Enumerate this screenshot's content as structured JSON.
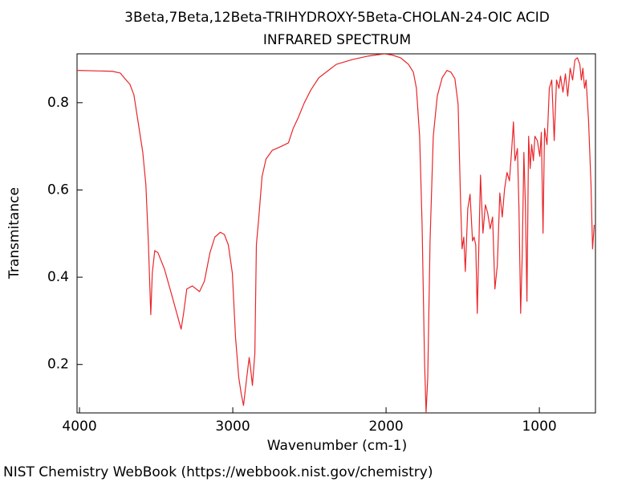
{
  "chart_data": {
    "type": "line",
    "title": "3Beta,7Beta,12Beta-TRIHYDROXY-5Beta-CHOLAN-24-OIC ACID",
    "subtitle": "INFRARED SPECTRUM",
    "x_label": "Wavenumber (cm-1)",
    "y_label": "Transmitance",
    "footer": "NIST Chemistry WebBook (https://webbook.nist.gov/chemistry)",
    "xlim": [
      4016,
      634
    ],
    "ylim": [
      0.089,
      0.912
    ],
    "xticks": [
      4000,
      3000,
      2000,
      1000
    ],
    "yticks": [
      0.2,
      0.4,
      0.6,
      0.8
    ],
    "grid": false,
    "x": [
      4016,
      3786,
      3734,
      3708,
      3671,
      3645,
      3619,
      3587,
      3567,
      3551,
      3535,
      3525,
      3509,
      3488,
      3446,
      3394,
      3358,
      3337,
      3321,
      3300,
      3264,
      3217,
      3185,
      3149,
      3117,
      3081,
      3055,
      3029,
      3003,
      2982,
      2961,
      2945,
      2930,
      2909,
      2893,
      2883,
      2872,
      2856,
      2846,
      2830,
      2809,
      2783,
      2742,
      2689,
      2637,
      2606,
      2574,
      2533,
      2491,
      2439,
      2376,
      2324,
      2219,
      2115,
      2010,
      1958,
      1906,
      1854,
      1822,
      1802,
      1781,
      1765,
      1749,
      1739,
      1728,
      1713,
      1692,
      1666,
      1634,
      1603,
      1577,
      1551,
      1530,
      1514,
      1504,
      1493,
      1483,
      1467,
      1452,
      1436,
      1426,
      1415,
      1405,
      1394,
      1384,
      1368,
      1352,
      1337,
      1321,
      1305,
      1290,
      1274,
      1258,
      1242,
      1227,
      1211,
      1195,
      1180,
      1169,
      1159,
      1143,
      1133,
      1122,
      1112,
      1101,
      1091,
      1081,
      1070,
      1060,
      1050,
      1039,
      1029,
      1013,
      997,
      987,
      976,
      966,
      950,
      935,
      919,
      903,
      888,
      872,
      862,
      846,
      830,
      815,
      799,
      783,
      768,
      752,
      736,
      726,
      716,
      705,
      695,
      679,
      663,
      653,
      642
    ],
    "series": [
      {
        "name": "Transmitance",
        "color": "#e8262a",
        "values": [
          0.874,
          0.872,
          0.868,
          0.857,
          0.842,
          0.818,
          0.759,
          0.686,
          0.612,
          0.483,
          0.314,
          0.41,
          0.461,
          0.456,
          0.419,
          0.354,
          0.308,
          0.281,
          0.317,
          0.373,
          0.38,
          0.367,
          0.391,
          0.456,
          0.492,
          0.503,
          0.498,
          0.474,
          0.41,
          0.262,
          0.17,
          0.133,
          0.106,
          0.17,
          0.216,
          0.189,
          0.152,
          0.225,
          0.474,
          0.538,
          0.631,
          0.671,
          0.691,
          0.699,
          0.708,
          0.741,
          0.765,
          0.8,
          0.829,
          0.857,
          0.874,
          0.888,
          0.899,
          0.907,
          0.912,
          0.909,
          0.903,
          0.888,
          0.87,
          0.833,
          0.723,
          0.52,
          0.207,
          0.09,
          0.17,
          0.483,
          0.723,
          0.815,
          0.857,
          0.874,
          0.87,
          0.855,
          0.796,
          0.575,
          0.465,
          0.492,
          0.413,
          0.557,
          0.59,
          0.483,
          0.492,
          0.474,
          0.317,
          0.483,
          0.634,
          0.501,
          0.566,
          0.547,
          0.511,
          0.538,
          0.373,
          0.428,
          0.593,
          0.538,
          0.602,
          0.64,
          0.621,
          0.695,
          0.756,
          0.667,
          0.695,
          0.557,
          0.317,
          0.446,
          0.686,
          0.566,
          0.345,
          0.723,
          0.649,
          0.704,
          0.667,
          0.723,
          0.713,
          0.677,
          0.732,
          0.501,
          0.741,
          0.704,
          0.833,
          0.852,
          0.713,
          0.852,
          0.833,
          0.861,
          0.824,
          0.866,
          0.815,
          0.879,
          0.852,
          0.898,
          0.903,
          0.888,
          0.852,
          0.879,
          0.833,
          0.852,
          0.759,
          0.612,
          0.465,
          0.52
        ]
      }
    ]
  }
}
